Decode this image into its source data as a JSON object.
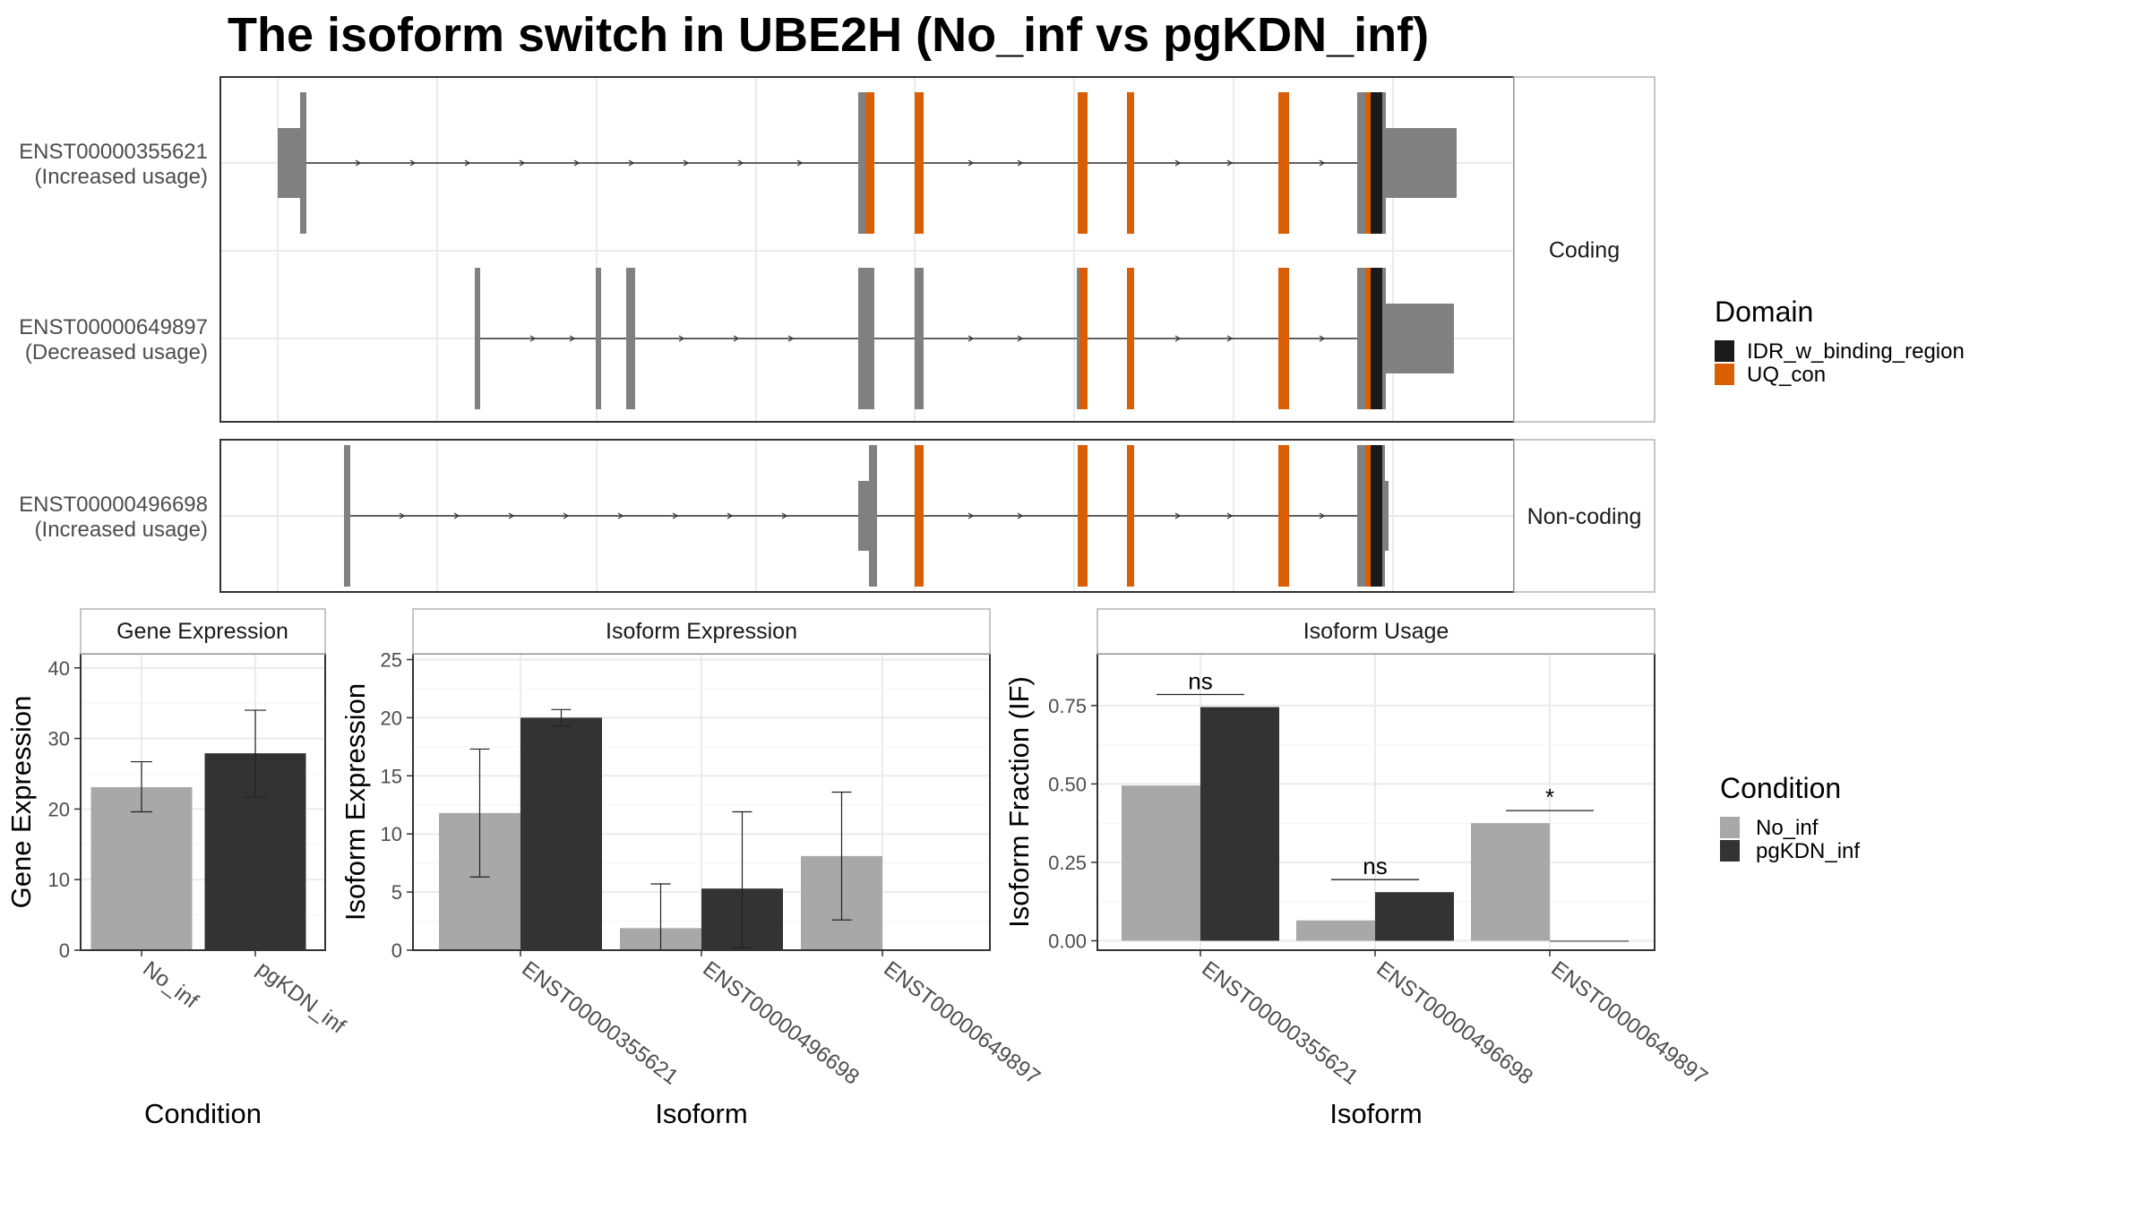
{
  "title": "The isoform switch in UBE2H (No_inf vs pgKDN_inf)",
  "colors": {
    "exon": "#808080",
    "uq_con": "#d95f02",
    "idr": "#1a1a1a",
    "no_inf": "#a8a8a8",
    "pgkdn_inf": "#333333",
    "grid": "#ebebeb",
    "strip_bg": "#ffffff",
    "panel_border": "#333333"
  },
  "structure": {
    "panels": [
      {
        "label": "Coding",
        "isoforms": [
          {
            "id": "ENST00000355621",
            "usage": "(Increased usage)"
          },
          {
            "id": "ENST00000649897",
            "usage": "(Decreased usage)"
          }
        ]
      },
      {
        "label": "Non-coding",
        "isoforms": [
          {
            "id": "ENST00000496698",
            "usage": "(Increased usage)"
          }
        ]
      }
    ],
    "legend": {
      "title": "Domain",
      "items": [
        {
          "label": "IDR_w_binding_region",
          "color": "#1a1a1a"
        },
        {
          "label": "UQ_con",
          "color": "#d95f02"
        }
      ]
    }
  },
  "chart_data": [
    {
      "type": "bar",
      "title": "Gene Expression",
      "xlabel": "Condition",
      "ylabel": "Gene Expression",
      "categories": [
        "No_inf",
        "pgKDN_inf"
      ],
      "values": [
        23.1,
        27.9
      ],
      "err_low": [
        19.6,
        21.7
      ],
      "err_high": [
        26.7,
        34.0
      ],
      "ylim": [
        0,
        42
      ],
      "yticks": [
        0,
        10,
        20,
        30,
        40
      ],
      "grid": true
    },
    {
      "type": "bar",
      "title": "Isoform Expression",
      "xlabel": "Isoform",
      "ylabel": "Isoform Expression",
      "categories": [
        "ENST00000355621",
        "ENST00000496698",
        "ENST00000649897"
      ],
      "series": [
        {
          "name": "No_inf",
          "values": [
            11.8,
            1.9,
            8.1
          ],
          "err_low": [
            6.3,
            0.0,
            2.6
          ],
          "err_high": [
            17.3,
            5.7,
            13.6
          ]
        },
        {
          "name": "pgKDN_inf",
          "values": [
            20.0,
            5.3,
            0.0
          ],
          "err_low": [
            19.3,
            0.2,
            0.0
          ],
          "err_high": [
            20.7,
            11.9,
            0.0
          ]
        }
      ],
      "ylim": [
        0,
        25.5
      ],
      "yticks": [
        0,
        5,
        10,
        15,
        20,
        25
      ],
      "grid": true
    },
    {
      "type": "bar",
      "title": "Isoform Usage",
      "xlabel": "Isoform",
      "ylabel": "Isoform Fraction (IF)",
      "categories": [
        "ENST00000355621",
        "ENST00000496698",
        "ENST00000649897"
      ],
      "series": [
        {
          "name": "No_inf",
          "values": [
            0.495,
            0.065,
            0.375
          ]
        },
        {
          "name": "pgKDN_inf",
          "values": [
            0.745,
            0.155,
            0.0
          ]
        }
      ],
      "annotations": [
        {
          "category": "ENST00000355621",
          "text": "ns",
          "y": 0.785
        },
        {
          "category": "ENST00000496698",
          "text": "ns",
          "y": 0.195
        },
        {
          "category": "ENST00000649897",
          "text": "*",
          "y": 0.415
        }
      ],
      "ylim": [
        -0.03,
        0.915
      ],
      "yticks": [
        0.0,
        0.25,
        0.5,
        0.75
      ],
      "ytick_labels": [
        "0.00",
        "0.25",
        "0.50",
        "0.75"
      ],
      "grid": true
    }
  ],
  "condition_legend": {
    "title": "Condition",
    "items": [
      {
        "label": "No_inf",
        "color": "#a8a8a8"
      },
      {
        "label": "pgKDN_inf",
        "color": "#333333"
      }
    ]
  }
}
